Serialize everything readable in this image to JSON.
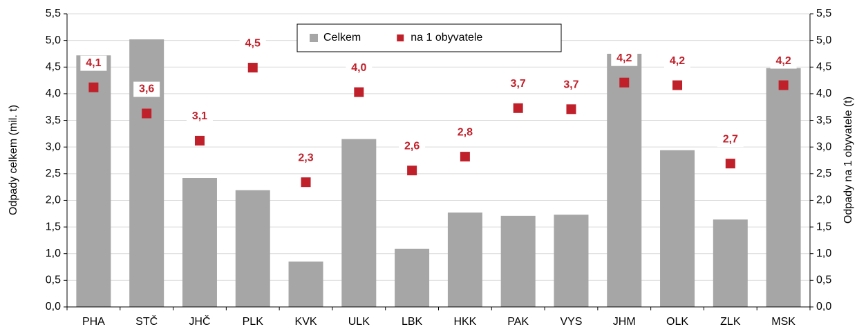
{
  "chart_data": {
    "type": "bar",
    "categories": [
      "PHA",
      "STČ",
      "JHČ",
      "PLK",
      "KVK",
      "ULK",
      "LBK",
      "HKK",
      "PAK",
      "VYS",
      "JHM",
      "OLK",
      "ZLK",
      "MSK"
    ],
    "series": [
      {
        "name": "Celkem",
        "type": "bar",
        "color": "#a6a6a6",
        "values": [
          4.72,
          5.02,
          2.42,
          2.19,
          0.85,
          3.15,
          1.09,
          1.77,
          1.71,
          1.73,
          4.75,
          2.94,
          1.64,
          4.48
        ]
      },
      {
        "name": "na 1 obyvatele",
        "type": "scatter",
        "axis": "y2",
        "color": "#c0202a",
        "values": [
          4.12,
          3.63,
          3.12,
          4.49,
          2.34,
          4.03,
          2.56,
          2.82,
          3.73,
          3.71,
          4.21,
          4.16,
          2.69,
          4.16
        ],
        "value_labels": [
          "4,1",
          "3,6",
          "3,1",
          "4,5",
          "2,3",
          "4,0",
          "2,6",
          "2,8",
          "3,7",
          "3,7",
          "4,2",
          "4,2",
          "2,7",
          "4,2"
        ]
      }
    ],
    "y_label": "Odpady celkem (mil. t)",
    "y2_label": "Odpady na 1 obyvatele (t)",
    "ylim": [
      0,
      5.5
    ],
    "yticks": [
      {
        "value": 0,
        "label": "0,0"
      },
      {
        "value": 0.5,
        "label": "0,5"
      },
      {
        "value": 1,
        "label": "1,0"
      },
      {
        "value": 1.5,
        "label": "1,5"
      },
      {
        "value": 2,
        "label": "2,0"
      },
      {
        "value": 2.5,
        "label": "2,5"
      },
      {
        "value": 3,
        "label": "3,0"
      },
      {
        "value": 3.5,
        "label": "3,5"
      },
      {
        "value": 4,
        "label": "4,0"
      },
      {
        "value": 4.5,
        "label": "4,5"
      },
      {
        "value": 5,
        "label": "5,0"
      },
      {
        "value": 5.5,
        "label": "5,5"
      }
    ],
    "y2lim": [
      0,
      5.5
    ],
    "y2ticks": [
      {
        "value": 0,
        "label": "0,0"
      },
      {
        "value": 0.5,
        "label": "0,5"
      },
      {
        "value": 1,
        "label": "1,0"
      },
      {
        "value": 1.5,
        "label": "1,5"
      },
      {
        "value": 2,
        "label": "2,0"
      },
      {
        "value": 2.5,
        "label": "2,5"
      },
      {
        "value": 3,
        "label": "3,0"
      },
      {
        "value": 3.5,
        "label": "3,5"
      },
      {
        "value": 4,
        "label": "4,0"
      },
      {
        "value": 4.5,
        "label": "4,5"
      },
      {
        "value": 5,
        "label": "5,0"
      },
      {
        "value": 5.5,
        "label": "5,5"
      }
    ],
    "grid": true,
    "legend": "top"
  }
}
